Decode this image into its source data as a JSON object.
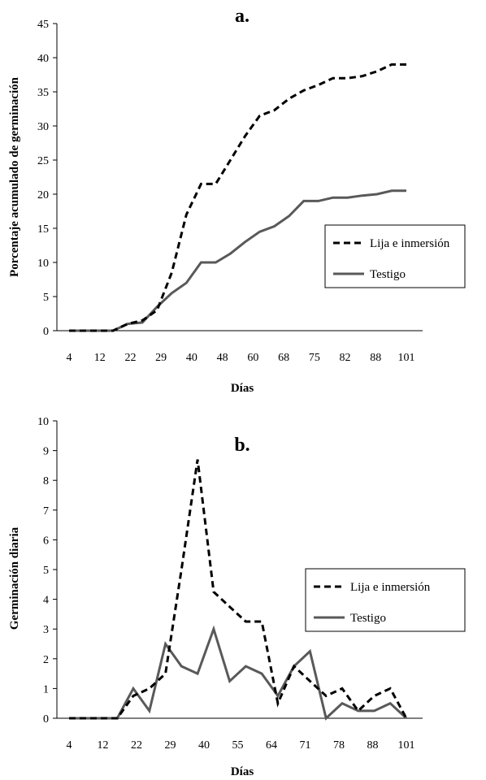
{
  "chart_data": [
    {
      "type": "line",
      "title": "a.",
      "xlabel": "Días",
      "ylabel": "Porcentaje acumulado de germinación",
      "ylim": [
        0,
        45
      ],
      "yticks": [
        "0",
        "5",
        "10",
        "15",
        "20",
        "25",
        "30",
        "35",
        "40",
        "45"
      ],
      "xtick_labels": [
        "4",
        "12",
        "22",
        "29",
        "40",
        "48",
        "60",
        "68",
        "75",
        "82",
        "88",
        "101"
      ],
      "legend_position": "right",
      "series": [
        {
          "name": "Lija e inmersión",
          "style": "dashed",
          "color": "#000000",
          "values": [
            0,
            0,
            0,
            0,
            1,
            1.5,
            3,
            8.5,
            17,
            21.5,
            21.5,
            25,
            28.5,
            31.5,
            32.3,
            34,
            35.2,
            36,
            37,
            37,
            37.3,
            38,
            39,
            39
          ]
        },
        {
          "name": "Testigo",
          "style": "solid",
          "color": "#595959",
          "values": [
            0,
            0,
            0,
            0,
            1,
            1.2,
            3.5,
            5.5,
            7,
            10,
            10,
            11.3,
            13,
            14.5,
            15.3,
            16.8,
            19,
            19,
            19.5,
            19.5,
            19.8,
            20,
            20.5,
            20.5
          ]
        }
      ]
    },
    {
      "type": "line",
      "title": "b.",
      "xlabel": "Días",
      "ylabel": "Germinación diaria",
      "ylim": [
        0,
        10
      ],
      "yticks": [
        "0",
        "1",
        "2",
        "3",
        "4",
        "5",
        "6",
        "7",
        "8",
        "9",
        "10"
      ],
      "xtick_labels": [
        "4",
        "12",
        "22",
        "29",
        "40",
        "55",
        "64",
        "71",
        "78",
        "88",
        "101"
      ],
      "legend_position": "right",
      "series": [
        {
          "name": "Lija e inmersión",
          "style": "dashed",
          "color": "#000000",
          "values": [
            0,
            0,
            0,
            0,
            0.75,
            1,
            1.5,
            5,
            8.7,
            4.25,
            3.75,
            3.25,
            3.25,
            0.5,
            1.75,
            1.25,
            0.75,
            1,
            0.25,
            0.75,
            1,
            0
          ]
        },
        {
          "name": "Testigo",
          "style": "solid",
          "color": "#595959",
          "values": [
            0,
            0,
            0,
            0,
            1,
            0.25,
            2.5,
            1.75,
            1.5,
            3,
            1.25,
            1.75,
            1.5,
            0.75,
            1.75,
            2.25,
            0,
            0.5,
            0.25,
            0.25,
            0.5,
            0
          ]
        }
      ]
    }
  ]
}
